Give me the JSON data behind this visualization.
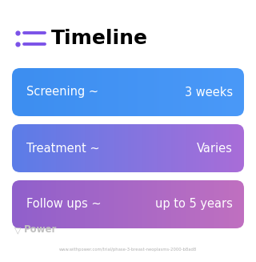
{
  "title": "Timeline",
  "icon_color": "#7b52e8",
  "title_fontsize": 18,
  "title_color": "#000000",
  "background_color": "#ffffff",
  "rows": [
    {
      "left_text": "Screening ~",
      "right_text": "3 weeks",
      "color_left": "#3d8ef0",
      "color_right": "#4a99f8"
    },
    {
      "left_text": "Treatment ~",
      "right_text": "Varies",
      "color_left": "#5b7de8",
      "color_right": "#a96dd8"
    },
    {
      "left_text": "Follow ups ~",
      "right_text": "up to 5 years",
      "color_left": "#9060cc",
      "color_right": "#c070c0"
    }
  ],
  "watermark_text": "Power",
  "watermark_color": "#c0c0c0",
  "url_text": "www.withpower.com/trial/phase-3-breast-neoplasms-2000-b8ad8",
  "url_color": "#b0b0b0",
  "text_color": "#ffffff",
  "text_fontsize": 10.5,
  "fig_width": 3.2,
  "fig_height": 3.27,
  "dpi": 100
}
